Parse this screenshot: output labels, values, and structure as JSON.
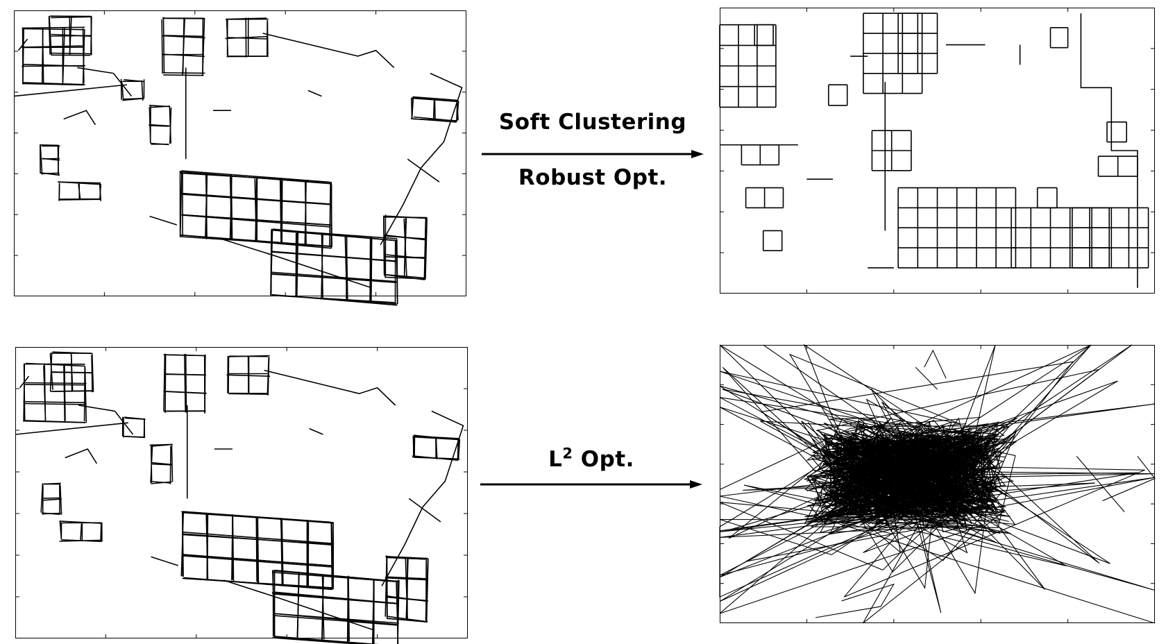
{
  "arrows": {
    "top": {
      "label_line1": "Soft Clustering",
      "label_line2": "Robust Opt."
    },
    "bottom": {
      "label_base": "L",
      "label_superscript": "2",
      "label_rest": " Opt."
    }
  },
  "panels": {
    "top_left": {
      "content": "input-trajectory"
    },
    "top_right": {
      "content": "optimized-grid-trajectory"
    },
    "bottom_left": {
      "content": "input-trajectory"
    },
    "bottom_right": {
      "content": "diverged-trajectory"
    }
  },
  "colors": {
    "line": "#000000",
    "background": "#ffffff"
  }
}
